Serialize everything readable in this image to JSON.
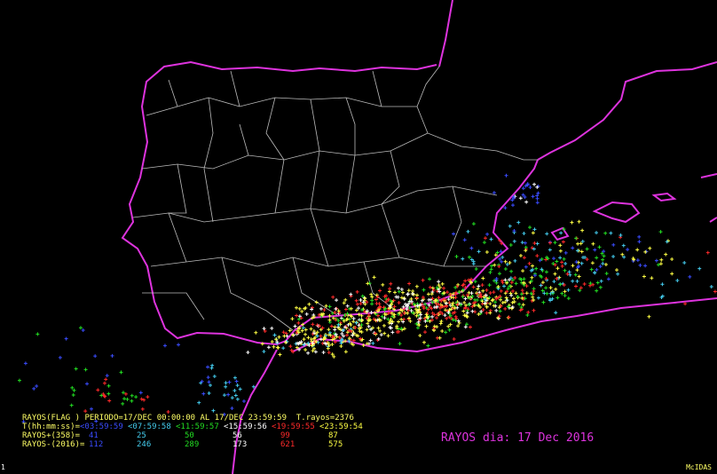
{
  "title": "RAYOS dia: 17 Dec 2016",
  "legend": {
    "header": "RAYOS(FLAG ) PERIODO=17/DEC 00:00:00 AL 17/DEC 23:59:59  T.rayos=2376",
    "time_label": "T(hh:mm:ss)= ",
    "intervals": [
      "<03:59:59",
      "<07:59:58",
      "<11:59:57",
      "<15:59:56",
      "<19:59:55",
      "<23:59:54"
    ],
    "positive_label": "RAYOS+(358)=",
    "positive": [
      "41",
      "25",
      "50",
      "56",
      "99",
      "87"
    ],
    "negative_label": "RAYOS-(2016)=",
    "negative": [
      "112",
      "246",
      "289",
      "173",
      "621",
      "575"
    ]
  },
  "footer": {
    "frame": "1",
    "software": "McIDAS"
  }
}
